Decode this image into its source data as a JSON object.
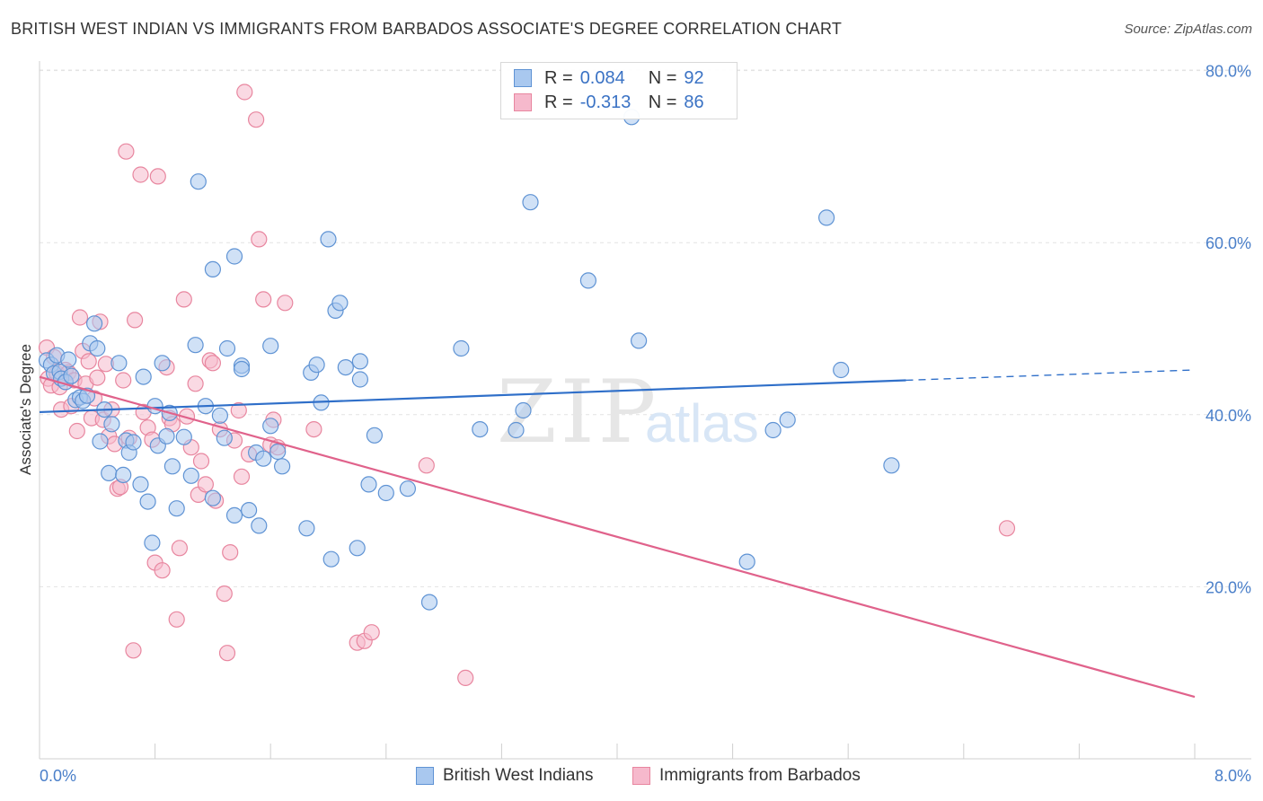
{
  "title": "BRITISH WEST INDIAN VS IMMIGRANTS FROM BARBADOS ASSOCIATE'S DEGREE CORRELATION CHART",
  "source": "Source: ZipAtlas.com",
  "watermark": {
    "zip": "ZIP",
    "atlas": "atlas"
  },
  "colors": {
    "blue": "#a9c8ef",
    "blue_stroke": "#5f93d4",
    "blue_line": "#2f6fc9",
    "pink": "#f6b9cc",
    "pink_stroke": "#e8869f",
    "pink_line": "#e0628b",
    "axis_text": "#4a7fc9"
  },
  "legend": {
    "rows": [
      {
        "r_label": "R =",
        "r_value": "0.084",
        "n_label": "N =",
        "n_value": "92"
      },
      {
        "r_label": "R =",
        "r_value": "-0.313",
        "n_label": "N =",
        "n_value": "86"
      }
    ]
  },
  "chart_data": {
    "type": "scatter",
    "title": "BRITISH WEST INDIAN VS IMMIGRANTS FROM BARBADOS ASSOCIATE'S DEGREE CORRELATION CHART",
    "xlabel": "",
    "ylabel": "Associate's Degree",
    "xlim": [
      0,
      8
    ],
    "ylim": [
      0,
      82
    ],
    "x_tick_labels": [
      "0.0%",
      "8.0%"
    ],
    "y_ticks": [
      20,
      40,
      60,
      80
    ],
    "y_tick_labels": [
      "20.0%",
      "40.0%",
      "60.0%",
      "80.0%"
    ],
    "grid": true,
    "legend_position": "bottom-center",
    "series": [
      {
        "name": "British West Indians",
        "r": 0.084,
        "n": 92,
        "trend": {
          "x0": 0,
          "y0": 40.3,
          "x1": 6.0,
          "y1": 44.0,
          "dashed_to_x": 8.0,
          "dashed_to_y": 45.2
        },
        "points": [
          [
            0.05,
            46.3
          ],
          [
            0.08,
            45.8
          ],
          [
            0.1,
            44.8
          ],
          [
            0.12,
            46.9
          ],
          [
            0.14,
            45.0
          ],
          [
            0.15,
            44.2
          ],
          [
            0.18,
            43.8
          ],
          [
            0.2,
            46.4
          ],
          [
            0.22,
            44.5
          ],
          [
            0.25,
            41.7
          ],
          [
            0.28,
            42.0
          ],
          [
            0.3,
            41.6
          ],
          [
            0.33,
            42.2
          ],
          [
            0.35,
            48.3
          ],
          [
            0.38,
            50.6
          ],
          [
            0.4,
            47.7
          ],
          [
            0.42,
            36.9
          ],
          [
            0.45,
            40.6
          ],
          [
            0.48,
            33.2
          ],
          [
            0.5,
            38.9
          ],
          [
            0.55,
            46.0
          ],
          [
            0.58,
            33.0
          ],
          [
            0.6,
            37.0
          ],
          [
            0.62,
            35.6
          ],
          [
            0.65,
            36.8
          ],
          [
            0.7,
            31.9
          ],
          [
            0.72,
            44.4
          ],
          [
            0.75,
            29.9
          ],
          [
            0.78,
            25.1
          ],
          [
            0.8,
            41.0
          ],
          [
            0.82,
            36.4
          ],
          [
            0.85,
            46.0
          ],
          [
            0.88,
            37.5
          ],
          [
            0.9,
            40.2
          ],
          [
            0.92,
            34.0
          ],
          [
            0.95,
            29.1
          ],
          [
            1.0,
            37.4
          ],
          [
            1.05,
            32.9
          ],
          [
            1.08,
            48.1
          ],
          [
            1.1,
            67.1
          ],
          [
            1.15,
            41.0
          ],
          [
            1.2,
            30.3
          ],
          [
            1.2,
            56.9
          ],
          [
            1.25,
            39.9
          ],
          [
            1.28,
            37.3
          ],
          [
            1.3,
            47.7
          ],
          [
            1.35,
            58.4
          ],
          [
            1.35,
            28.3
          ],
          [
            1.4,
            45.7
          ],
          [
            1.4,
            45.3
          ],
          [
            1.45,
            28.9
          ],
          [
            1.5,
            35.6
          ],
          [
            1.52,
            27.1
          ],
          [
            1.55,
            34.9
          ],
          [
            1.6,
            38.7
          ],
          [
            1.6,
            48.0
          ],
          [
            1.65,
            35.7
          ],
          [
            1.68,
            34.0
          ],
          [
            1.85,
            26.8
          ],
          [
            1.88,
            44.9
          ],
          [
            1.92,
            45.8
          ],
          [
            1.95,
            41.4
          ],
          [
            2.0,
            60.4
          ],
          [
            2.02,
            23.2
          ],
          [
            2.05,
            52.1
          ],
          [
            2.08,
            53.0
          ],
          [
            2.12,
            45.5
          ],
          [
            2.2,
            24.5
          ],
          [
            2.22,
            44.1
          ],
          [
            2.22,
            46.2
          ],
          [
            2.28,
            31.9
          ],
          [
            2.32,
            37.6
          ],
          [
            2.4,
            30.9
          ],
          [
            2.55,
            31.4
          ],
          [
            2.7,
            18.2
          ],
          [
            2.92,
            47.7
          ],
          [
            3.05,
            38.3
          ],
          [
            3.3,
            38.2
          ],
          [
            3.35,
            40.5
          ],
          [
            3.4,
            64.7
          ],
          [
            3.8,
            55.6
          ],
          [
            4.1,
            74.6
          ],
          [
            4.15,
            48.6
          ],
          [
            4.9,
            22.9
          ],
          [
            5.08,
            38.2
          ],
          [
            5.18,
            39.4
          ],
          [
            5.45,
            62.9
          ],
          [
            5.55,
            45.2
          ],
          [
            5.9,
            34.1
          ]
        ]
      },
      {
        "name": "Immigrants from Barbados",
        "r": -0.313,
        "n": 86,
        "trend": {
          "x0": 0,
          "y0": 44.4,
          "x1": 8.0,
          "y1": 7.2
        },
        "points": [
          [
            0.05,
            47.8
          ],
          [
            0.06,
            44.2
          ],
          [
            0.08,
            43.4
          ],
          [
            0.1,
            46.7
          ],
          [
            0.12,
            44.8
          ],
          [
            0.14,
            43.2
          ],
          [
            0.15,
            40.6
          ],
          [
            0.18,
            45.2
          ],
          [
            0.2,
            44.9
          ],
          [
            0.22,
            41.0
          ],
          [
            0.24,
            44.0
          ],
          [
            0.26,
            38.1
          ],
          [
            0.28,
            51.3
          ],
          [
            0.3,
            47.4
          ],
          [
            0.32,
            43.6
          ],
          [
            0.34,
            46.2
          ],
          [
            0.36,
            39.6
          ],
          [
            0.38,
            41.9
          ],
          [
            0.4,
            44.3
          ],
          [
            0.42,
            50.8
          ],
          [
            0.44,
            39.4
          ],
          [
            0.46,
            45.9
          ],
          [
            0.48,
            37.5
          ],
          [
            0.5,
            40.6
          ],
          [
            0.52,
            36.6
          ],
          [
            0.54,
            31.4
          ],
          [
            0.56,
            31.6
          ],
          [
            0.58,
            44.0
          ],
          [
            0.6,
            70.6
          ],
          [
            0.62,
            37.3
          ],
          [
            0.65,
            12.6
          ],
          [
            0.66,
            51.0
          ],
          [
            0.7,
            67.9
          ],
          [
            0.72,
            40.3
          ],
          [
            0.75,
            38.5
          ],
          [
            0.78,
            37.1
          ],
          [
            0.8,
            22.8
          ],
          [
            0.82,
            67.7
          ],
          [
            0.85,
            21.9
          ],
          [
            0.88,
            45.5
          ],
          [
            0.9,
            39.6
          ],
          [
            0.92,
            38.9
          ],
          [
            0.95,
            16.2
          ],
          [
            0.97,
            24.5
          ],
          [
            1.0,
            53.4
          ],
          [
            1.02,
            39.8
          ],
          [
            1.05,
            36.2
          ],
          [
            1.08,
            43.6
          ],
          [
            1.1,
            30.7
          ],
          [
            1.12,
            34.6
          ],
          [
            1.15,
            31.9
          ],
          [
            1.18,
            46.3
          ],
          [
            1.2,
            46.0
          ],
          [
            1.22,
            30.0
          ],
          [
            1.25,
            38.3
          ],
          [
            1.28,
            19.2
          ],
          [
            1.3,
            12.3
          ],
          [
            1.32,
            24.0
          ],
          [
            1.35,
            37.0
          ],
          [
            1.38,
            40.5
          ],
          [
            1.4,
            32.8
          ],
          [
            1.42,
            77.5
          ],
          [
            1.45,
            35.4
          ],
          [
            1.5,
            74.3
          ],
          [
            1.52,
            60.4
          ],
          [
            1.55,
            53.4
          ],
          [
            1.6,
            36.5
          ],
          [
            1.62,
            39.4
          ],
          [
            1.65,
            36.2
          ],
          [
            1.7,
            53.0
          ],
          [
            1.9,
            38.3
          ],
          [
            2.2,
            13.5
          ],
          [
            2.25,
            13.7
          ],
          [
            2.3,
            14.7
          ],
          [
            2.68,
            34.1
          ],
          [
            2.95,
            9.4
          ],
          [
            6.7,
            26.8
          ]
        ]
      }
    ]
  }
}
